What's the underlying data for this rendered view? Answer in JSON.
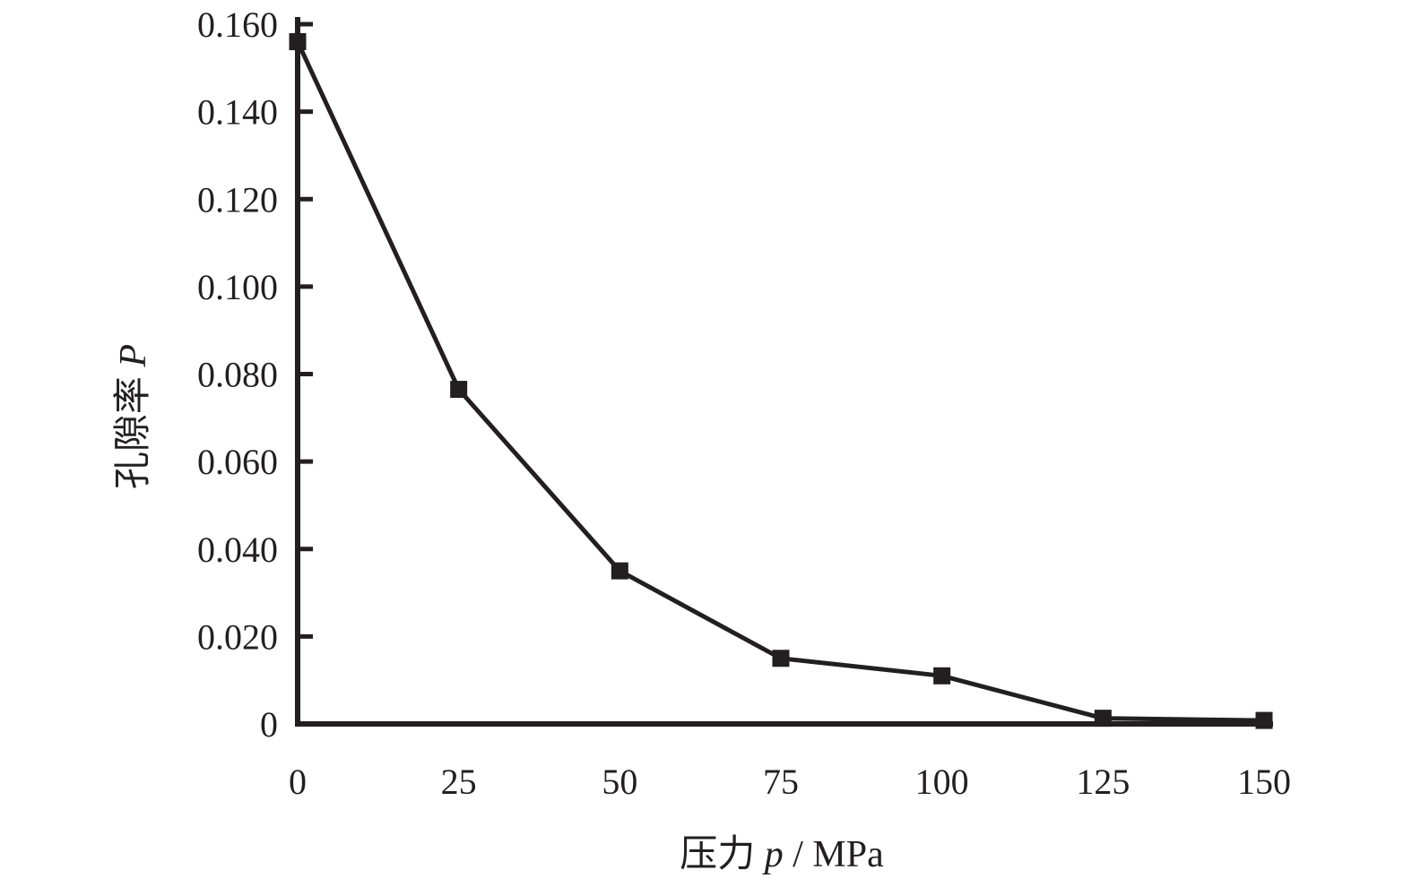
{
  "chart_data": {
    "type": "line",
    "title": "",
    "xlabel": {
      "prefix": "压力 ",
      "symbol": "p",
      "suffix": " / MPa"
    },
    "ylabel": {
      "prefix": "孔隙率 ",
      "symbol": "P"
    },
    "xlim": [
      0,
      150
    ],
    "ylim": [
      0,
      0.16
    ],
    "xticks": [
      0,
      25,
      50,
      75,
      100,
      125,
      150
    ],
    "xtick_labels": [
      "0",
      "25",
      "50",
      "75",
      "100",
      "125",
      "150"
    ],
    "yticks": [
      0,
      0.02,
      0.04,
      0.06,
      0.08,
      0.1,
      0.12,
      0.14,
      0.16
    ],
    "ytick_labels": [
      "0",
      "0.020",
      "0.040",
      "0.060",
      "0.080",
      "0.100",
      "0.120",
      "0.140",
      "0.160"
    ],
    "grid": false,
    "series": [
      {
        "x": [
          0,
          25,
          50,
          75,
          100,
          125,
          150
        ],
        "y": [
          0.156,
          0.0765,
          0.035,
          0.015,
          0.011,
          0.0013,
          0.0008
        ],
        "marker": "square",
        "color": "#231f20"
      }
    ]
  }
}
